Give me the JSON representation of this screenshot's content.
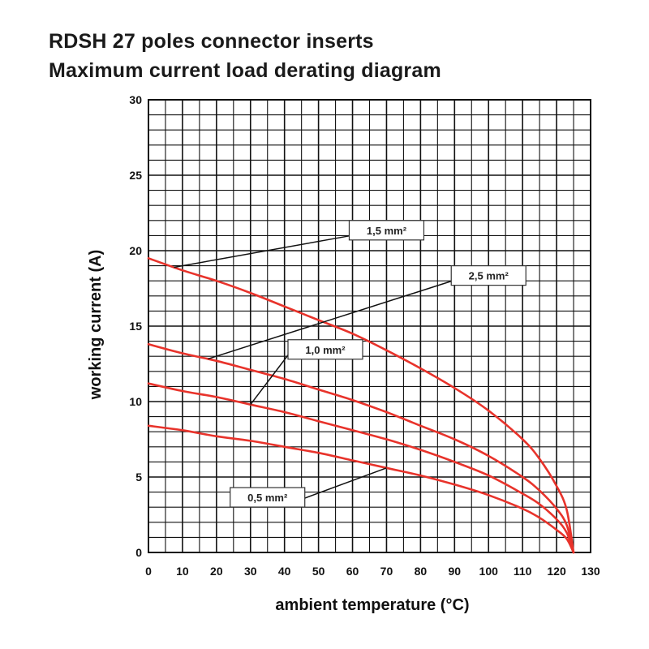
{
  "title_line1": "RDSH 27 poles connector inserts",
  "title_line2": "Maximum current load derating diagram",
  "chart_data": {
    "type": "line",
    "xlabel": "ambient temperature (°C)",
    "ylabel": "working current (A)",
    "xlim": [
      0,
      130
    ],
    "ylim": [
      0,
      30
    ],
    "x_ticks": [
      0,
      10,
      20,
      30,
      40,
      50,
      60,
      70,
      80,
      90,
      100,
      110,
      120,
      130
    ],
    "y_ticks": [
      0,
      5,
      10,
      15,
      20,
      25,
      30
    ],
    "grid": true,
    "series_color": "#e8332b",
    "series": [
      {
        "name": "1,5 mm²",
        "x": [
          0,
          10,
          20,
          30,
          40,
          50,
          60,
          70,
          80,
          90,
          100,
          110,
          115,
          120,
          123,
          125
        ],
        "y": [
          19.5,
          18.7,
          18.0,
          17.2,
          16.3,
          15.4,
          14.5,
          13.4,
          12.2,
          10.9,
          9.4,
          7.5,
          6.2,
          4.4,
          2.8,
          0
        ]
      },
      {
        "name": "2,5 mm²",
        "x": [
          0,
          10,
          20,
          30,
          40,
          50,
          60,
          70,
          80,
          90,
          100,
          110,
          115,
          120,
          123,
          125
        ],
        "y": [
          13.8,
          13.2,
          12.7,
          12.1,
          11.5,
          10.8,
          10.1,
          9.3,
          8.4,
          7.5,
          6.4,
          5.0,
          4.1,
          2.9,
          1.8,
          0
        ]
      },
      {
        "name": "1,0 mm²",
        "x": [
          0,
          10,
          20,
          30,
          40,
          50,
          60,
          70,
          80,
          90,
          100,
          110,
          115,
          120,
          123,
          125
        ],
        "y": [
          11.2,
          10.7,
          10.3,
          9.8,
          9.3,
          8.7,
          8.1,
          7.5,
          6.8,
          6.0,
          5.1,
          3.9,
          3.2,
          2.2,
          1.3,
          0
        ]
      },
      {
        "name": "0,5 mm²",
        "x": [
          0,
          10,
          20,
          30,
          40,
          50,
          60,
          70,
          80,
          90,
          100,
          110,
          115,
          120,
          123,
          125
        ],
        "y": [
          8.4,
          8.1,
          7.7,
          7.4,
          7.0,
          6.6,
          6.1,
          5.6,
          5.1,
          4.5,
          3.8,
          2.9,
          2.3,
          1.5,
          0.9,
          0
        ]
      }
    ],
    "annotations": [
      {
        "text": "1,5 mm²",
        "series": "1,5 mm²"
      },
      {
        "text": "2,5 mm²",
        "series": "2,5 mm²"
      },
      {
        "text": "1,0 mm²",
        "series": "1,0 mm²"
      },
      {
        "text": "0,5 mm²",
        "series": "0,5 mm²"
      }
    ]
  }
}
